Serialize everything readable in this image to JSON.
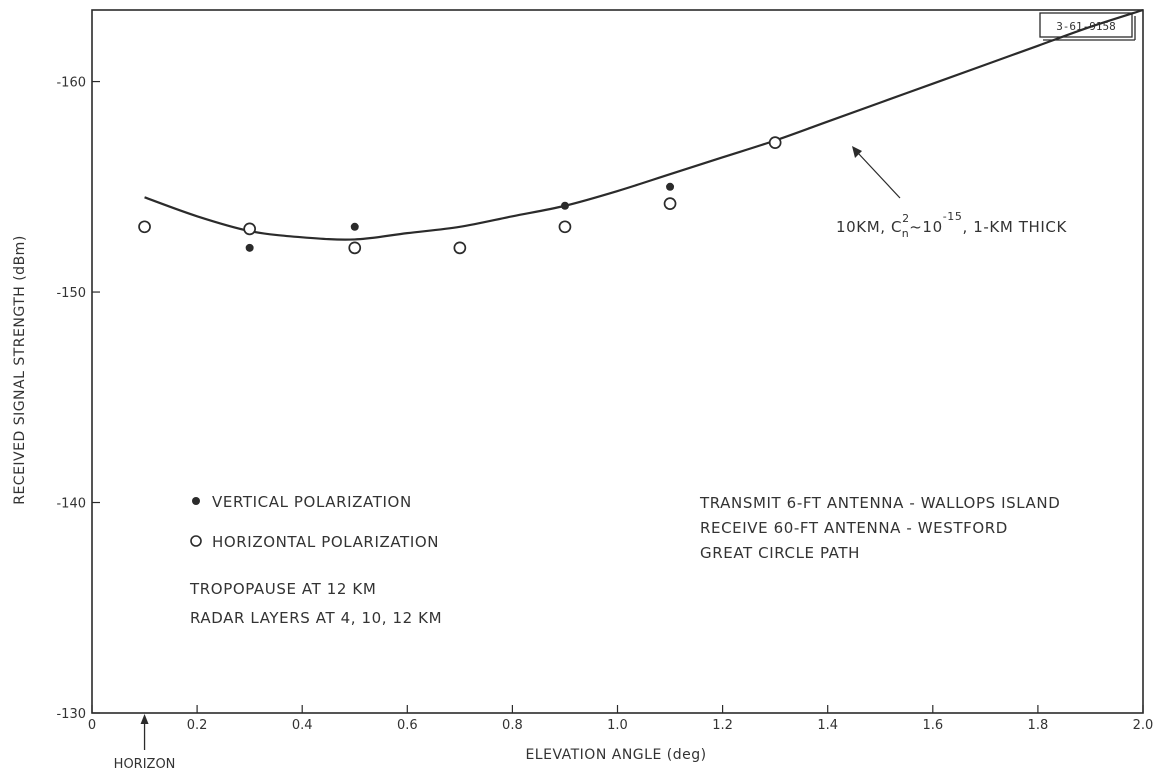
{
  "figure_id": "3-61-9158",
  "chart_data": {
    "type": "scatter",
    "xlabel": "ELEVATION ANGLE (deg)",
    "ylabel": "RECEIVED SIGNAL STRENGTH (dBm)",
    "xlim": [
      0,
      2.0
    ],
    "ylim": [
      -130,
      -163
    ],
    "x_ticks": [
      0,
      0.2,
      0.4,
      0.6,
      0.8,
      1.0,
      1.2,
      1.4,
      1.6,
      1.8,
      2.0
    ],
    "x_tick_labels": [
      "0",
      "0.2",
      "0.4",
      "0.6",
      "0.8",
      "1.0",
      "1.2",
      "1.4",
      "1.6",
      "1.8",
      "2.0"
    ],
    "y_ticks": [
      -130,
      -140,
      -150,
      -160
    ],
    "y_tick_labels": [
      "-130",
      "-140",
      "-150",
      "-160"
    ],
    "grid": false,
    "horizon": {
      "x": 0.1,
      "label": "HORIZON"
    },
    "series": [
      {
        "name": "VERTICAL POLARIZATION",
        "marker": "filled-circle",
        "points": [
          [
            0.3,
            -152.1
          ],
          [
            0.5,
            -153.1
          ],
          [
            0.9,
            -154.1
          ],
          [
            1.1,
            -155.0
          ]
        ]
      },
      {
        "name": "HORIZONTAL POLARIZATION",
        "marker": "open-circle",
        "points": [
          [
            0.1,
            -153.1
          ],
          [
            0.3,
            -153.0
          ],
          [
            0.5,
            -152.1
          ],
          [
            0.7,
            -152.1
          ],
          [
            0.9,
            -153.1
          ],
          [
            1.1,
            -154.2
          ],
          [
            1.3,
            -157.1
          ]
        ]
      },
      {
        "name": "10KM, Cn2 ~ 10-15, 1-KM THICK",
        "marker": "line",
        "points": [
          [
            0.1,
            -154.5
          ],
          [
            0.2,
            -153.6
          ],
          [
            0.3,
            -152.9
          ],
          [
            0.4,
            -152.6
          ],
          [
            0.5,
            -152.5
          ],
          [
            0.6,
            -152.8
          ],
          [
            0.7,
            -153.1
          ],
          [
            0.8,
            -153.6
          ],
          [
            0.9,
            -154.1
          ],
          [
            1.0,
            -154.8
          ],
          [
            1.1,
            -155.6
          ],
          [
            1.2,
            -156.4
          ],
          [
            1.3,
            -157.2
          ],
          [
            1.4,
            -158.1
          ],
          [
            1.5,
            -159.0
          ],
          [
            1.6,
            -159.9
          ],
          [
            1.7,
            -160.8
          ],
          [
            1.8,
            -161.7
          ],
          [
            1.9,
            -162.6
          ],
          [
            2.0,
            -163.4
          ]
        ]
      }
    ],
    "curve_annotation": {
      "pre": "10KM, C",
      "sup": "2",
      "sub": "n",
      "mid": "~10",
      "exp": "-15",
      "post": ", 1-KM THICK"
    },
    "legend": {
      "vertical": "VERTICAL POLARIZATION",
      "horizontal": "HORIZONTAL POLARIZATION"
    },
    "notes_left": [
      "TROPOPAUSE AT 12 KM",
      "RADAR LAYERS AT 4, 10, 12 KM"
    ],
    "notes_right": [
      "TRANSMIT 6-FT ANTENNA - WALLOPS ISLAND",
      "RECEIVE 60-FT ANTENNA - WESTFORD",
      "GREAT CIRCLE PATH"
    ],
    "colors": {
      "ink": "#2b2b2b",
      "background": "#ffffff"
    }
  }
}
